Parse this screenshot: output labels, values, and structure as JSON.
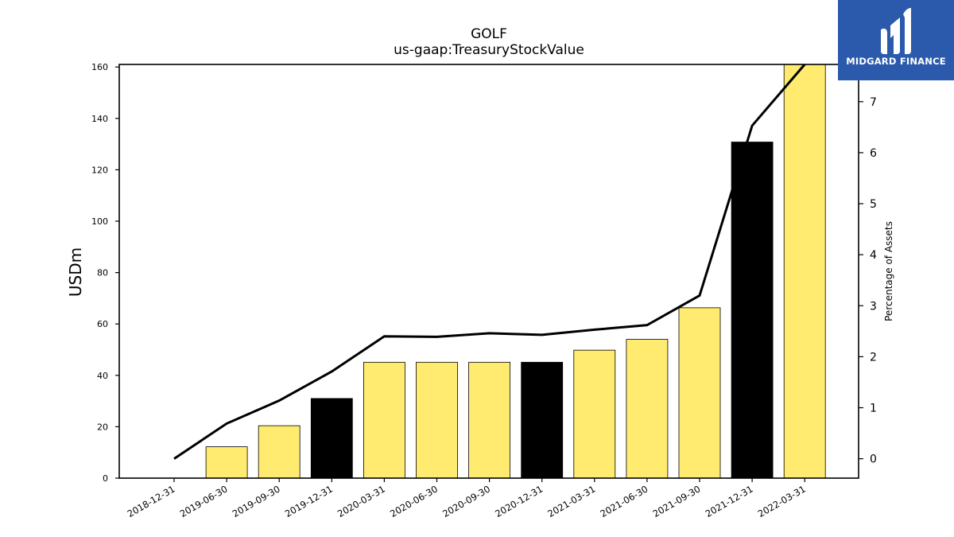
{
  "brand": {
    "name": "MIDGARD FINANCE",
    "background": "#2b5aad",
    "icon": "midgard-logo-icon"
  },
  "chart_data": {
    "type": "bar",
    "title": "GOLF",
    "subtitle": "us-gaap:TreasuryStockValue",
    "ylabel": "USDm",
    "y2label": "Percentage of Assets",
    "categories": [
      "2018-12-31",
      "2019-06-30",
      "2019-09-30",
      "2019-12-31",
      "2020-03-31",
      "2020-06-30",
      "2020-09-30",
      "2020-12-31",
      "2021-03-31",
      "2021-06-30",
      "2021-09-30",
      "2021-12-31",
      "2022-03-31"
    ],
    "values": [
      0,
      12.2,
      20.4,
      31.0,
      45.1,
      45.1,
      45.1,
      45.1,
      49.8,
      54.0,
      66.3,
      130.8,
      161.3
    ],
    "bar_colors": [
      "#ffeb70",
      "#ffeb70",
      "#ffeb70",
      "#000000",
      "#ffeb70",
      "#ffeb70",
      "#ffeb70",
      "#000000",
      "#ffeb70",
      "#ffeb70",
      "#ffeb70",
      "#000000",
      "#ffeb70"
    ],
    "line_series": {
      "axis": "right",
      "values": [
        0.0,
        0.69,
        1.14,
        1.71,
        2.4,
        2.39,
        2.46,
        2.43,
        2.53,
        2.62,
        3.2,
        6.53,
        7.73
      ]
    },
    "ylim": [
      0,
      161
    ],
    "y2lim": [
      -0.38,
      7.73
    ],
    "yticks": [
      0,
      20,
      40,
      60,
      80,
      100,
      120,
      140,
      160
    ],
    "y2ticks": [
      0,
      1,
      2,
      3,
      4,
      5,
      6,
      7
    ],
    "grid": false,
    "legend": "none"
  }
}
